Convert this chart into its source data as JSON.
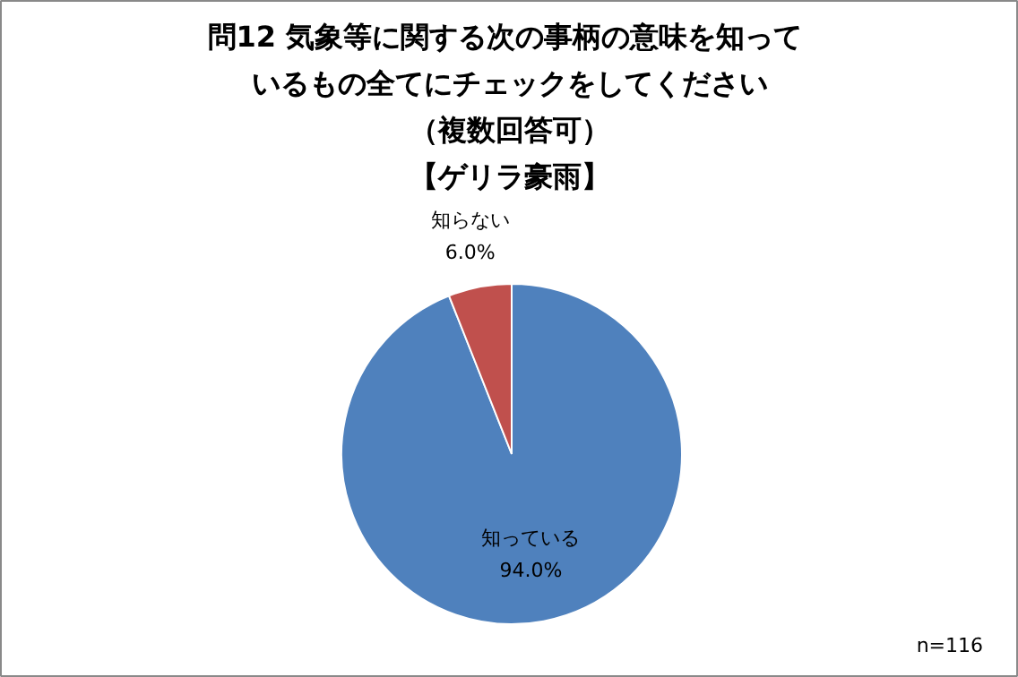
{
  "chart_data": {
    "type": "pie",
    "title": "問12  気象等に関する次の事柄の意味を知っているもの全てにチェックをしてください",
    "subtitle": "（複数回答可）【ゲリラ豪雨】",
    "categories": [
      "知っている",
      "知らない"
    ],
    "values": [
      94.0,
      6.0
    ],
    "colors": [
      "#4f81bd",
      "#c0504d"
    ],
    "value_labels": [
      "94.0%",
      "6.0%"
    ],
    "annotations": [
      "n=116"
    ]
  }
}
